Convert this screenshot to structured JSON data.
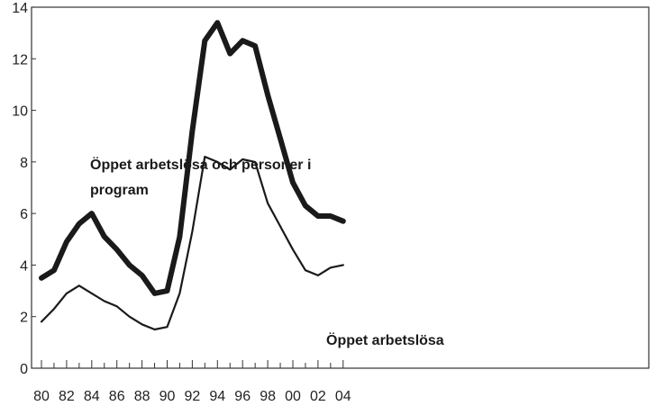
{
  "chart_data": {
    "type": "line",
    "x": [
      "80",
      "81",
      "82",
      "83",
      "84",
      "85",
      "86",
      "87",
      "88",
      "89",
      "90",
      "91",
      "92",
      "93",
      "94",
      "95",
      "96",
      "97",
      "98",
      "99",
      "00",
      "01",
      "02",
      "03",
      "04"
    ],
    "x_tick_labels": [
      "80",
      "82",
      "84",
      "86",
      "88",
      "90",
      "92",
      "94",
      "96",
      "98",
      "00",
      "02",
      "04"
    ],
    "y_tick_labels": [
      "0",
      "2",
      "4",
      "6",
      "8",
      "10",
      "12",
      "14"
    ],
    "ylim": [
      0,
      14
    ],
    "grid": false,
    "series": [
      {
        "name": "Öppet arbetslösa och personer i program",
        "color": "#1a1a1a",
        "values": [
          3.5,
          3.8,
          4.9,
          5.6,
          6.0,
          5.1,
          4.6,
          4.0,
          3.6,
          2.9,
          3.0,
          5.1,
          9.2,
          12.7,
          13.4,
          12.2,
          12.7,
          12.5,
          10.6,
          8.9,
          7.2,
          6.3,
          5.9,
          5.9,
          5.7
        ]
      },
      {
        "name": "Öppet arbetslösa",
        "color": "#1a1a1a",
        "values": [
          1.8,
          2.3,
          2.9,
          3.2,
          2.9,
          2.6,
          2.4,
          2.0,
          1.7,
          1.5,
          1.6,
          2.9,
          5.3,
          8.2,
          8.0,
          7.7,
          8.1,
          8.0,
          6.4,
          5.5,
          4.6,
          3.8,
          3.6,
          3.9,
          4.0
        ]
      }
    ],
    "annotations": {
      "upper_line1": "Öppet arbetslösa och personer i",
      "upper_line2": "program",
      "lower": "Öppet arbetslösa"
    }
  }
}
